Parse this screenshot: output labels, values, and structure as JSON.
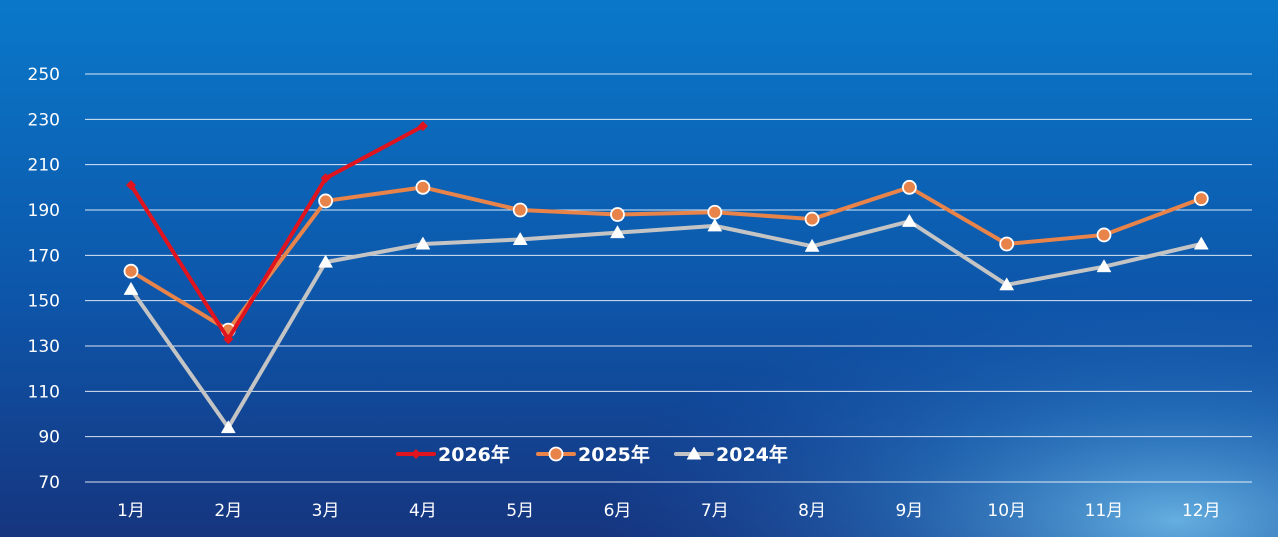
{
  "chart_data": {
    "type": "line",
    "title": "",
    "xlabel": "",
    "ylabel": "",
    "categories": [
      "1月",
      "2月",
      "3月",
      "4月",
      "5月",
      "6月",
      "7月",
      "8月",
      "9月",
      "10月",
      "11月",
      "12月"
    ],
    "y_ticks": [
      "70",
      "90",
      "110",
      "130",
      "150",
      "170",
      "190",
      "210",
      "230",
      "250"
    ],
    "ylim": [
      70,
      250
    ],
    "grid": true,
    "legend_position": "bottom-center",
    "series": [
      {
        "name": "2026年",
        "color": "#e0141e",
        "marker": "diamond",
        "values": [
          201,
          133,
          204,
          227,
          null,
          null,
          null,
          null,
          null,
          null,
          null,
          null
        ]
      },
      {
        "name": "2025年",
        "color": "#e8834a",
        "marker": "circle",
        "values": [
          163,
          137,
          194,
          200,
          190,
          188,
          189,
          186,
          200,
          175,
          179,
          195
        ]
      },
      {
        "name": "2024年",
        "color": "#c4c4c4",
        "marker": "triangle",
        "values": [
          155,
          94,
          167,
          175,
          177,
          180,
          183,
          174,
          185,
          157,
          165,
          175
        ]
      }
    ]
  }
}
